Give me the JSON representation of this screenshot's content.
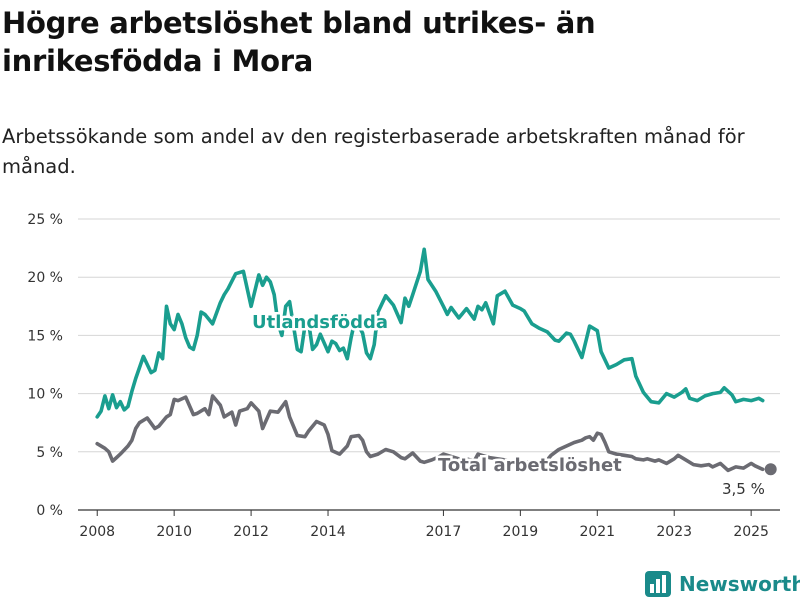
{
  "title": "Högre arbetslöshet bland utrikes- än inrikesfödda i Mora",
  "subtitle": "Arbetssökande som andel av den registerbaserade arbetskraften månad för månad.",
  "brand": {
    "name": "Newsworthy",
    "icon": "bar-chart-logo-icon"
  },
  "colors": {
    "utlandsfodda": "#1a9e8f",
    "total": "#6b6b72",
    "grid": "#d6d6d6",
    "brand": "#1a8a8a"
  },
  "chart_data": {
    "type": "line",
    "x_unit": "year",
    "ylim": [
      0,
      25
    ],
    "y_ticks": [
      0,
      5,
      10,
      15,
      20,
      25
    ],
    "y_tick_labels": [
      "0 %",
      "5 %",
      "10 %",
      "15 %",
      "20 %",
      "25 %"
    ],
    "x_ticks": [
      2008,
      2010,
      2012,
      2014,
      2017,
      2019,
      2021,
      2023,
      2025
    ],
    "x_tick_labels": [
      "2008",
      "2010",
      "2012",
      "2014",
      "2017",
      "2019",
      "2021",
      "2023",
      "2025"
    ],
    "grid": true,
    "series": [
      {
        "name": "Utlandsfödda",
        "color": "#1a9e8f",
        "x": [
          2008.0,
          2008.1,
          2008.2,
          2008.3,
          2008.4,
          2008.5,
          2008.6,
          2008.7,
          2008.8,
          2008.9,
          2009.0,
          2009.2,
          2009.4,
          2009.5,
          2009.6,
          2009.7,
          2009.8,
          2009.9,
          2010.0,
          2010.1,
          2010.2,
          2010.3,
          2010.4,
          2010.5,
          2010.6,
          2010.7,
          2010.8,
          2011.0,
          2011.2,
          2011.3,
          2011.4,
          2011.6,
          2011.8,
          2012.0,
          2012.2,
          2012.3,
          2012.4,
          2012.5,
          2012.6,
          2012.7,
          2012.8,
          2012.9,
          2013.0,
          2013.2,
          2013.3,
          2013.4,
          2013.5,
          2013.6,
          2013.7,
          2013.8,
          2014.0,
          2014.1,
          2014.2,
          2014.3,
          2014.4,
          2014.5,
          2014.6,
          2014.7,
          2014.8,
          2014.9,
          2015.0,
          2015.1,
          2015.2,
          2015.3,
          2015.5,
          2015.7,
          2015.9,
          2016.0,
          2016.1,
          2016.2,
          2016.4,
          2016.5,
          2016.6,
          2016.8,
          2017.0,
          2017.1,
          2017.2,
          2017.4,
          2017.5,
          2017.6,
          2017.8,
          2017.9,
          2018.0,
          2018.1,
          2018.3,
          2018.4,
          2018.6,
          2018.8,
          2019.0,
          2019.1,
          2019.3,
          2019.5,
          2019.7,
          2019.9,
          2020.0,
          2020.2,
          2020.3,
          2020.4,
          2020.6,
          2020.8,
          2021.0,
          2021.1,
          2021.3,
          2021.5,
          2021.7,
          2021.9,
          2022.0,
          2022.2,
          2022.4,
          2022.6,
          2022.8,
          2023.0,
          2023.2,
          2023.3,
          2023.4,
          2023.6,
          2023.8,
          2024.0,
          2024.2,
          2024.3,
          2024.5,
          2024.6,
          2024.8,
          2025.0,
          2025.2,
          2025.3
        ],
        "values": [
          8.0,
          8.5,
          9.8,
          8.7,
          9.9,
          8.8,
          9.3,
          8.6,
          8.9,
          10.2,
          11.3,
          13.2,
          11.8,
          12.0,
          13.5,
          13.0,
          17.5,
          16.0,
          15.5,
          16.8,
          16.0,
          14.8,
          14.0,
          13.8,
          15.0,
          17.0,
          16.8,
          16.0,
          17.8,
          18.5,
          19.0,
          20.3,
          20.5,
          17.5,
          20.2,
          19.3,
          20.0,
          19.6,
          18.5,
          16.0,
          15.0,
          17.5,
          17.9,
          13.8,
          13.6,
          15.8,
          16.0,
          13.8,
          14.2,
          15.1,
          13.6,
          14.5,
          14.3,
          13.7,
          13.9,
          13.0,
          14.8,
          16.3,
          15.8,
          15.2,
          13.5,
          13.0,
          14.2,
          17.0,
          18.4,
          17.6,
          16.1,
          18.2,
          17.5,
          18.5,
          20.5,
          22.4,
          19.8,
          18.8,
          17.5,
          16.8,
          17.4,
          16.5,
          16.9,
          17.3,
          16.4,
          17.5,
          17.2,
          17.8,
          16.0,
          18.4,
          18.8,
          17.6,
          17.3,
          17.1,
          16.0,
          15.6,
          15.3,
          14.6,
          14.5,
          15.2,
          15.1,
          14.5,
          13.1,
          15.8,
          15.4,
          13.6,
          12.2,
          12.5,
          12.9,
          13.0,
          11.5,
          10.1,
          9.3,
          9.2,
          10.0,
          9.7,
          10.1,
          10.4,
          9.6,
          9.4,
          9.8,
          10.0,
          10.1,
          10.5,
          9.9,
          9.3,
          9.5,
          9.4,
          9.6,
          9.4
        ],
        "label_text": "Utlandsfödda"
      },
      {
        "name": "Total arbetslöshet",
        "color": "#6b6b72",
        "x": [
          2008.0,
          2008.2,
          2008.3,
          2008.4,
          2008.5,
          2008.6,
          2008.8,
          2008.9,
          2009.0,
          2009.1,
          2009.3,
          2009.5,
          2009.6,
          2009.8,
          2009.9,
          2010.0,
          2010.1,
          2010.3,
          2010.5,
          2010.6,
          2010.8,
          2010.9,
          2011.0,
          2011.2,
          2011.3,
          2011.5,
          2011.6,
          2011.7,
          2011.9,
          2012.0,
          2012.2,
          2012.3,
          2012.5,
          2012.7,
          2012.9,
          2013.0,
          2013.2,
          2013.4,
          2013.5,
          2013.7,
          2013.9,
          2014.0,
          2014.1,
          2014.3,
          2014.5,
          2014.6,
          2014.8,
          2014.9,
          2015.0,
          2015.1,
          2015.3,
          2015.5,
          2015.7,
          2015.9,
          2016.0,
          2016.2,
          2016.4,
          2016.5,
          2016.7,
          2016.9,
          2017.0,
          2017.2,
          2017.4,
          2017.6,
          2017.8,
          2017.9,
          2018.0,
          2018.2,
          2018.4,
          2018.6,
          2018.8,
          2019.0,
          2019.2,
          2019.4,
          2019.6,
          2019.8,
          2020.0,
          2020.2,
          2020.4,
          2020.6,
          2020.7,
          2020.8,
          2020.9,
          2021.0,
          2021.1,
          2021.2,
          2021.3,
          2021.5,
          2021.7,
          2021.9,
          2022.0,
          2022.2,
          2022.3,
          2022.5,
          2022.6,
          2022.8,
          2023.0,
          2023.1,
          2023.3,
          2023.5,
          2023.7,
          2023.9,
          2024.0,
          2024.2,
          2024.4,
          2024.6,
          2024.8,
          2025.0,
          2025.1,
          2025.3
        ],
        "values": [
          5.7,
          5.3,
          5.0,
          4.2,
          4.5,
          4.8,
          5.5,
          6.0,
          7.0,
          7.5,
          7.9,
          7.0,
          7.2,
          8.0,
          8.2,
          9.5,
          9.4,
          9.7,
          8.2,
          8.3,
          8.7,
          8.2,
          9.8,
          9.0,
          8.0,
          8.4,
          7.3,
          8.5,
          8.7,
          9.2,
          8.5,
          7.0,
          8.5,
          8.4,
          9.3,
          8.0,
          6.4,
          6.3,
          6.8,
          7.6,
          7.3,
          6.5,
          5.1,
          4.8,
          5.5,
          6.3,
          6.4,
          6.0,
          5.0,
          4.6,
          4.8,
          5.2,
          5.0,
          4.5,
          4.4,
          4.9,
          4.2,
          4.1,
          4.3,
          4.6,
          4.8,
          4.6,
          4.4,
          4.4,
          4.2,
          4.8,
          4.7,
          4.5,
          4.4,
          4.3,
          4.2,
          4.1,
          4.1,
          4.0,
          3.9,
          4.7,
          5.2,
          5.5,
          5.8,
          6.0,
          6.2,
          6.3,
          6.0,
          6.6,
          6.5,
          5.8,
          5.0,
          4.8,
          4.7,
          4.6,
          4.4,
          4.3,
          4.4,
          4.2,
          4.3,
          4.0,
          4.4,
          4.7,
          4.3,
          3.9,
          3.8,
          3.9,
          3.7,
          4.0,
          3.4,
          3.7,
          3.6,
          4.0,
          3.8,
          3.5
        ],
        "label_text": "Total arbetslöshet",
        "end_value_label": "3,5 %"
      }
    ]
  }
}
